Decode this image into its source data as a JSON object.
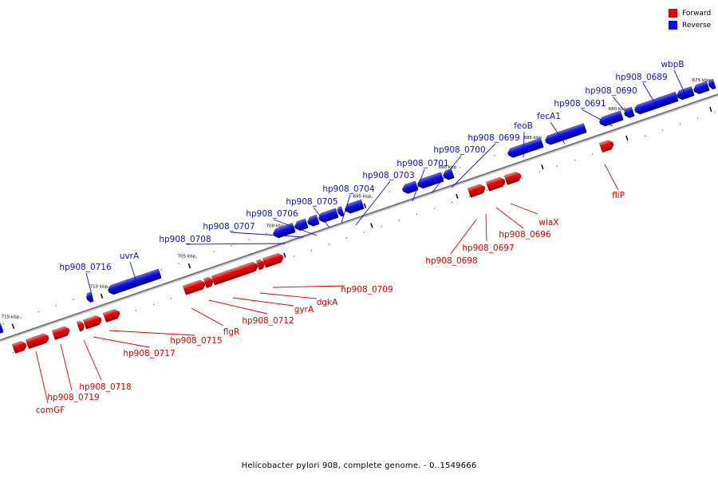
{
  "legend": {
    "forward": {
      "label": "Forward",
      "color": "#ee0000"
    },
    "reverse": {
      "label": "Reverse",
      "color": "#1010ee"
    }
  },
  "caption": "Helicobacter pylori 908, complete genome. - 0..1549666",
  "ticks": [
    "715 kbp",
    "710 kbp",
    "705 kbp",
    "700 kbp",
    "695 kbp",
    "690 kbp",
    "685 kbp",
    "680 kbp",
    "675 kbp"
  ],
  "genes": {
    "reverse": [
      "wbpB",
      "hp908_0689",
      "hp908_0690",
      "hp908_0691",
      "fecA1",
      "feoB",
      "hp908_0699",
      "hp908_0700",
      "hp908_0701",
      "hp908_0703",
      "hp908_0704",
      "hp908_0705",
      "hp908_0706",
      "hp908_0707",
      "hp908_0708",
      "uvrA",
      "hp908_0716"
    ],
    "forward": [
      "fliP",
      "wlaX",
      "hp908_0696",
      "hp908_0697",
      "hp908_0698",
      "hp908_0709",
      "dgkA",
      "gyrA",
      "hp908_0712",
      "flgR",
      "hp908_0715",
      "hp908_0717",
      "hp908_0718",
      "hp908_0719",
      "comGF"
    ]
  }
}
